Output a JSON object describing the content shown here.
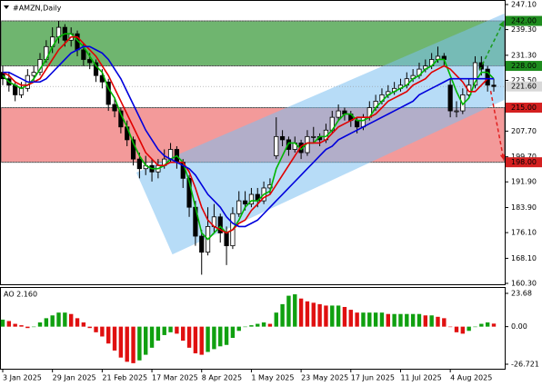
{
  "chart_data": {
    "type": "candlestick",
    "title": "#AMZN,Daily",
    "categories": [
      "3 Jan 2025",
      null,
      null,
      null,
      null,
      null,
      null,
      null,
      "29 Jan 2025",
      null,
      null,
      null,
      null,
      null,
      null,
      null,
      "21 Feb 2025",
      null,
      null,
      null,
      null,
      null,
      null,
      null,
      "17 Mar 2025",
      null,
      null,
      null,
      null,
      null,
      null,
      null,
      "8 Apr 2025",
      null,
      null,
      null,
      null,
      null,
      null,
      null,
      "1 May 2025",
      null,
      null,
      null,
      null,
      null,
      null,
      null,
      "23 May 2025",
      null,
      null,
      null,
      null,
      null,
      null,
      null,
      "17 Jun 2025",
      null,
      null,
      null,
      null,
      null,
      null,
      null,
      "11 Jul 2025",
      null,
      null,
      null,
      null,
      null,
      null,
      null,
      "4 Aug 2025",
      null,
      null,
      null,
      null,
      null,
      null,
      null
    ],
    "candles": [
      [
        226,
        228,
        222,
        224
      ],
      [
        224,
        226,
        220,
        222
      ],
      [
        222,
        223,
        217,
        219
      ],
      [
        219,
        223,
        218,
        221
      ],
      [
        221,
        227,
        220,
        225
      ],
      [
        225,
        228,
        223,
        226
      ],
      [
        226,
        232,
        225,
        230
      ],
      [
        230,
        236,
        229,
        234
      ],
      [
        234,
        240,
        232,
        237
      ],
      [
        237,
        242,
        235,
        240
      ],
      [
        240,
        241,
        234,
        236
      ],
      [
        236,
        240,
        234,
        238
      ],
      [
        238,
        239,
        231,
        233
      ],
      [
        233,
        235,
        228,
        230
      ],
      [
        230,
        232,
        227,
        229
      ],
      [
        229,
        230,
        223,
        225
      ],
      [
        225,
        227,
        221,
        223
      ],
      [
        223,
        224,
        214,
        216
      ],
      [
        216,
        218,
        212,
        214
      ],
      [
        214,
        215,
        207,
        209
      ],
      [
        209,
        211,
        203,
        205
      ],
      [
        205,
        206,
        197,
        199
      ],
      [
        199,
        201,
        193,
        196
      ],
      [
        196,
        200,
        194,
        197
      ],
      [
        197,
        199,
        192,
        195
      ],
      [
        195,
        199,
        193,
        197
      ],
      [
        197,
        202,
        196,
        199
      ],
      [
        199,
        204,
        198,
        202
      ],
      [
        202,
        203,
        196,
        198
      ],
      [
        198,
        199,
        190,
        193
      ],
      [
        193,
        194,
        181,
        184
      ],
      [
        184,
        186,
        172,
        175
      ],
      [
        175,
        177,
        163,
        170
      ],
      [
        170,
        184,
        169,
        178
      ],
      [
        178,
        185,
        176,
        181
      ],
      [
        181,
        182,
        173,
        176
      ],
      [
        176,
        178,
        166,
        172
      ],
      [
        172,
        184,
        171,
        182
      ],
      [
        182,
        189,
        181,
        186
      ],
      [
        186,
        189,
        183,
        185
      ],
      [
        185,
        190,
        184,
        188
      ],
      [
        188,
        190,
        184,
        186
      ],
      [
        186,
        192,
        185,
        190
      ],
      [
        190,
        193,
        188,
        191
      ],
      [
        200,
        212,
        199,
        206
      ],
      [
        206,
        208,
        203,
        205
      ],
      [
        205,
        206,
        200,
        202
      ],
      [
        202,
        206,
        201,
        204
      ],
      [
        204,
        205,
        199,
        201
      ],
      [
        201,
        208,
        200,
        206
      ],
      [
        206,
        209,
        204,
        206
      ],
      [
        206,
        207,
        203,
        205
      ],
      [
        205,
        210,
        204,
        208
      ],
      [
        208,
        214,
        207,
        212
      ],
      [
        212,
        216,
        211,
        214
      ],
      [
        214,
        215,
        211,
        213
      ],
      [
        213,
        214,
        209,
        211
      ],
      [
        211,
        212,
        207,
        209
      ],
      [
        209,
        213,
        208,
        212
      ],
      [
        212,
        217,
        211,
        215
      ],
      [
        215,
        219,
        214,
        217
      ],
      [
        217,
        221,
        216,
        219
      ],
      [
        219,
        222,
        218,
        220
      ],
      [
        220,
        223,
        219,
        221
      ],
      [
        221,
        224,
        220,
        222
      ],
      [
        222,
        226,
        221,
        224
      ],
      [
        224,
        227,
        223,
        225
      ],
      [
        225,
        229,
        224,
        227
      ],
      [
        227,
        230,
        226,
        228
      ],
      [
        228,
        232,
        227,
        230
      ],
      [
        230,
        234,
        229,
        231
      ],
      [
        231,
        232,
        228,
        230
      ],
      [
        222,
        224,
        212,
        214
      ],
      [
        214,
        217,
        212,
        214
      ],
      [
        214,
        221,
        213,
        219
      ],
      [
        219,
        224,
        218,
        222
      ],
      [
        222,
        231,
        221,
        229
      ],
      [
        229,
        231,
        225,
        227
      ],
      [
        227,
        228,
        220,
        222
      ],
      [
        222,
        224,
        220,
        221.6
      ]
    ],
    "series": [
      {
        "color": "#00b400",
        "values": [
          225,
          223,
          222,
          221,
          222,
          224,
          227,
          230,
          234,
          237,
          238,
          238,
          236,
          234,
          231,
          228,
          226,
          221,
          218,
          213,
          209,
          204,
          200,
          197,
          196,
          196,
          197,
          199,
          200,
          198,
          192,
          184,
          176,
          174,
          176,
          178,
          176,
          177,
          180,
          184,
          186,
          186,
          188,
          189,
          196,
          200,
          204,
          204,
          202,
          204,
          204,
          206,
          206,
          208,
          211,
          213,
          213,
          211,
          211,
          212,
          215,
          217,
          219,
          220,
          221,
          222,
          224,
          225,
          227,
          228,
          230,
          230,
          225,
          220,
          216,
          218,
          223,
          226,
          226,
          224
        ]
      },
      {
        "color": "#e00000",
        "values": [
          226,
          225,
          223,
          222,
          222,
          223,
          224,
          227,
          230,
          233,
          235,
          237,
          237,
          235,
          233,
          231,
          228,
          225,
          221,
          217,
          213,
          209,
          205,
          201,
          199,
          197,
          197,
          198,
          198,
          198,
          195,
          190,
          184,
          180,
          178,
          177,
          176,
          177,
          179,
          180,
          183,
          185,
          187,
          188,
          191,
          194,
          197,
          200,
          203,
          204,
          204,
          204,
          205,
          207,
          209,
          210,
          211,
          212,
          212,
          212,
          213,
          215,
          217,
          218,
          219,
          220,
          222,
          223,
          224,
          226,
          227,
          228,
          227,
          225,
          223,
          220,
          220,
          222,
          224,
          224
        ]
      },
      {
        "color": "#0000dc",
        "values": [
          226,
          226,
          225,
          224,
          223,
          223,
          223,
          224,
          226,
          228,
          230,
          232,
          233,
          234,
          234,
          233,
          232,
          230,
          227,
          224,
          220,
          216,
          212,
          208,
          205,
          202,
          200,
          199,
          198,
          197,
          196,
          194,
          191,
          188,
          186,
          184,
          181,
          179,
          178,
          178,
          179,
          180,
          182,
          184,
          186,
          188,
          190,
          192,
          194,
          196,
          198,
          200,
          202,
          203,
          205,
          206,
          207,
          208,
          209,
          210,
          211,
          212,
          213,
          214,
          215,
          216,
          217,
          219,
          220,
          221,
          222,
          223,
          224,
          224,
          224,
          224,
          224,
          224,
          224,
          224
        ]
      }
    ],
    "ylim": [
      160.3,
      247.1
    ],
    "yticks": [
      {
        "value": 247.1,
        "label": "247.10"
      },
      {
        "value": 239.3,
        "label": "239.30"
      },
      {
        "value": 231.3,
        "label": "231.30"
      },
      {
        "value": 223.5,
        "label": "223.50"
      },
      {
        "value": 207.7,
        "label": "207.70"
      },
      {
        "value": 199.7,
        "label": "199.70"
      },
      {
        "value": 191.9,
        "label": "191.90"
      },
      {
        "value": 183.9,
        "label": "183.90"
      },
      {
        "value": 176.1,
        "label": "176.10"
      },
      {
        "value": 168.1,
        "label": "168.10"
      },
      {
        "value": 160.3,
        "label": "160.30"
      }
    ],
    "zones": [
      {
        "from": 228,
        "to": 242,
        "color": "#6fb56f"
      },
      {
        "from": 198,
        "to": 215,
        "color": "#f39a9a"
      }
    ],
    "levels": [
      {
        "value": 242,
        "label": "242.00",
        "color": "#1e8c1e"
      },
      {
        "value": 228,
        "label": "228.00",
        "color": "#1e8c1e"
      },
      {
        "value": 221.6,
        "label": "221.60",
        "color": "#d8d8d8"
      },
      {
        "value": 215,
        "label": "215.00",
        "color": "#d42020"
      },
      {
        "value": 198,
        "label": "198.00",
        "color": "#d42020"
      }
    ],
    "channel": {
      "color": "#7cc0f0",
      "upper": {
        "x": [
          21.5,
          80.7
        ],
        "y": [
          194.8,
          244.3
        ]
      },
      "lower": {
        "x": [
          27.3,
          80.7
        ],
        "y": [
          169.3,
          217.4
        ]
      }
    },
    "arrows": [
      {
        "color": "#1a9a1a",
        "x": [
          76.7,
          80.7
        ],
        "y": [
          226.6,
          242
        ]
      },
      {
        "color": "#e02020",
        "x": [
          78.5,
          80.7
        ],
        "y": [
          220.2,
          198.6
        ]
      }
    ],
    "oscillator": {
      "title": "AO 2.160",
      "up_color": "#10a010",
      "down_color": "#e01010",
      "values": [
        5,
        4,
        2,
        1,
        -1,
        0,
        3,
        6,
        8,
        10,
        10,
        9,
        6,
        3,
        -1,
        -4,
        -7,
        -12,
        -17,
        -22,
        -25,
        -26,
        -24,
        -20,
        -15,
        -10,
        -6,
        -4,
        -5,
        -10,
        -15,
        -19,
        -20,
        -18,
        -16,
        -14,
        -13,
        -8,
        -3,
        0,
        1,
        2,
        3,
        2,
        10,
        16,
        22,
        23,
        20,
        18,
        17,
        16,
        15,
        15,
        15,
        14,
        12,
        10,
        10,
        10,
        10,
        10,
        9,
        9,
        9,
        9,
        9,
        9,
        8,
        8,
        7,
        6,
        0,
        -4,
        -5,
        -3,
        0,
        2,
        3,
        2.16
      ],
      "ylim": [
        -26.721,
        23.68
      ],
      "yticks": [
        {
          "value": 23.68,
          "label": "23.68"
        },
        {
          "value": 0,
          "label": "0.00"
        },
        {
          "value": -26.721,
          "label": "-26.721"
        }
      ]
    }
  }
}
